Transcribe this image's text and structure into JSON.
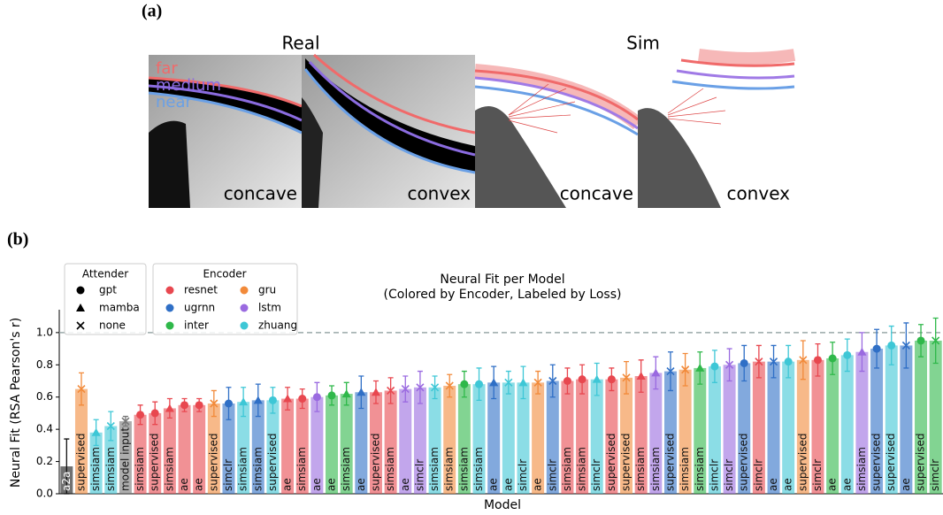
{
  "figure_a": {
    "label": "(a)",
    "titles": [
      "Real",
      "Sim"
    ],
    "curve_labels": [
      "far",
      "medium",
      "near"
    ],
    "panels": [
      "concave",
      "convex",
      "concave",
      "convex"
    ]
  },
  "chart_data": {
    "type": "bar",
    "panel_label": "(b)",
    "title": "Neural Fit per Model",
    "subtitle": "(Colored by Encoder, Labeled by Loss)",
    "x_label": "Model",
    "y_label": "Neural Fit (RSA Pearson's r)",
    "ylim": [
      0,
      1.12
    ],
    "yticks": [
      {
        "value": 0,
        "label": "0.0"
      },
      {
        "value": 0.2,
        "label": "0.2"
      },
      {
        "value": 0.4,
        "label": "0.4"
      },
      {
        "value": 0.6,
        "label": "0.6"
      },
      {
        "value": 0.8,
        "label": "0.8"
      },
      {
        "value": 1,
        "label": "1.0"
      }
    ],
    "reference_line": 1.0,
    "categories": [
      "a2a",
      "supervised",
      "simsiam",
      "simsiam",
      "model input",
      "simsiam",
      "supervised",
      "simsiam",
      "ae",
      "ae",
      "supervised",
      "simclr",
      "simsiam",
      "simsiam",
      "supervised",
      "ae",
      "simsiam",
      "ae",
      "ae",
      "simsiam",
      "ae",
      "supervised",
      "simsiam",
      "ae",
      "simclr",
      "simsiam",
      "simsiam",
      "simsiam",
      "simsiam",
      "ae",
      "ae",
      "simclr",
      "ae",
      "simclr",
      "simsiam",
      "simsiam",
      "simclr",
      "supervised",
      "supervised",
      "simsiam",
      "simsiam",
      "supervised",
      "simsiam",
      "simsiam",
      "simclr",
      "simclr",
      "supervised",
      "simclr",
      "ae",
      "ae",
      "supervised",
      "simclr",
      "ae",
      "ae",
      "simsiam",
      "supervised",
      "supervised",
      "ae",
      "supervised",
      "simclr"
    ],
    "values": [
      0.17,
      0.65,
      0.38,
      0.42,
      0.45,
      0.49,
      0.5,
      0.53,
      0.55,
      0.55,
      0.56,
      0.56,
      0.57,
      0.58,
      0.58,
      0.59,
      0.59,
      0.6,
      0.61,
      0.62,
      0.63,
      0.63,
      0.64,
      0.65,
      0.66,
      0.66,
      0.67,
      0.68,
      0.68,
      0.69,
      0.69,
      0.69,
      0.69,
      0.7,
      0.7,
      0.71,
      0.71,
      0.71,
      0.72,
      0.73,
      0.75,
      0.76,
      0.77,
      0.78,
      0.79,
      0.8,
      0.81,
      0.82,
      0.82,
      0.82,
      0.83,
      0.83,
      0.84,
      0.86,
      0.88,
      0.9,
      0.92,
      0.92,
      0.95,
      0.95
    ],
    "errors": [
      0.17,
      0.1,
      0.08,
      0.09,
      0.03,
      0.06,
      0.07,
      0.06,
      0.04,
      0.04,
      0.08,
      0.1,
      0.09,
      0.1,
      0.08,
      0.07,
      0.06,
      0.09,
      0.06,
      0.07,
      0.1,
      0.07,
      0.08,
      0.08,
      0.1,
      0.07,
      0.07,
      0.08,
      0.1,
      0.1,
      0.07,
      0.1,
      0.07,
      0.1,
      0.08,
      0.09,
      0.1,
      0.07,
      0.1,
      0.1,
      0.1,
      0.12,
      0.1,
      0.1,
      0.1,
      0.1,
      0.11,
      0.1,
      0.1,
      0.1,
      0.12,
      0.1,
      0.1,
      0.1,
      0.12,
      0.12,
      0.12,
      0.14,
      0.1,
      0.14
    ],
    "colors": [
      "#111111",
      "#f28a3a",
      "#3ec7d6",
      "#3ec7d6",
      "#777777",
      "#e8474f",
      "#e8474f",
      "#e8474f",
      "#e8474f",
      "#e8474f",
      "#f28a3a",
      "#2f6fc6",
      "#3ec7d6",
      "#2f6fc6",
      "#3ec7d6",
      "#e8474f",
      "#e8474f",
      "#9a6ae0",
      "#2fb84a",
      "#2fb84a",
      "#2f6fc6",
      "#e8474f",
      "#e8474f",
      "#9a6ae0",
      "#9a6ae0",
      "#3ec7d6",
      "#f28a3a",
      "#2fb84a",
      "#3ec7d6",
      "#2f6fc6",
      "#3ec7d6",
      "#3ec7d6",
      "#f28a3a",
      "#2f6fc6",
      "#e8474f",
      "#e8474f",
      "#3ec7d6",
      "#e8474f",
      "#f28a3a",
      "#e8474f",
      "#9a6ae0",
      "#2f6fc6",
      "#f28a3a",
      "#2fb84a",
      "#3ec7d6",
      "#9a6ae0",
      "#2f6fc6",
      "#e8474f",
      "#2f6fc6",
      "#3ec7d6",
      "#f28a3a",
      "#e8474f",
      "#2fb84a",
      "#3ec7d6",
      "#9a6ae0",
      "#2f6fc6",
      "#3ec7d6",
      "#2f6fc6",
      "#2fb84a",
      "#2fb84a"
    ],
    "markers": [
      null,
      "x",
      "triangle",
      "x",
      "x",
      "circle",
      "circle",
      "triangle",
      "circle",
      "circle",
      "x",
      "circle",
      "triangle",
      "triangle",
      "circle",
      "triangle",
      "circle",
      "circle",
      "circle",
      "triangle",
      "triangle",
      "triangle",
      "x",
      "x",
      "x",
      "x",
      "x",
      "circle",
      "circle",
      "triangle",
      "x",
      "triangle",
      "x",
      "x",
      "circle",
      "circle",
      "triangle",
      "circle",
      "x",
      "triangle",
      "triangle",
      "x",
      "x",
      "triangle",
      "circle",
      "x",
      "circle",
      "x",
      "x",
      "circle",
      "x",
      "circle",
      "circle",
      "circle",
      "triangle",
      "circle",
      "circle",
      "x",
      "circle",
      "x"
    ],
    "legend": {
      "attender_title": "Attender",
      "attender": [
        "gpt",
        "mamba",
        "none"
      ],
      "marker_shapes": [
        "circle",
        "triangle",
        "x"
      ],
      "encoder_title": "Encoder",
      "encoder": [
        {
          "name": "resnet",
          "color": "#e8474f"
        },
        {
          "name": "gru",
          "color": "#f28a3a"
        },
        {
          "name": "ugrnn",
          "color": "#2f6fc6"
        },
        {
          "name": "lstm",
          "color": "#9a6ae0"
        },
        {
          "name": "inter",
          "color": "#2fb84a"
        },
        {
          "name": "zhuang",
          "color": "#3ec7d6"
        }
      ]
    }
  }
}
